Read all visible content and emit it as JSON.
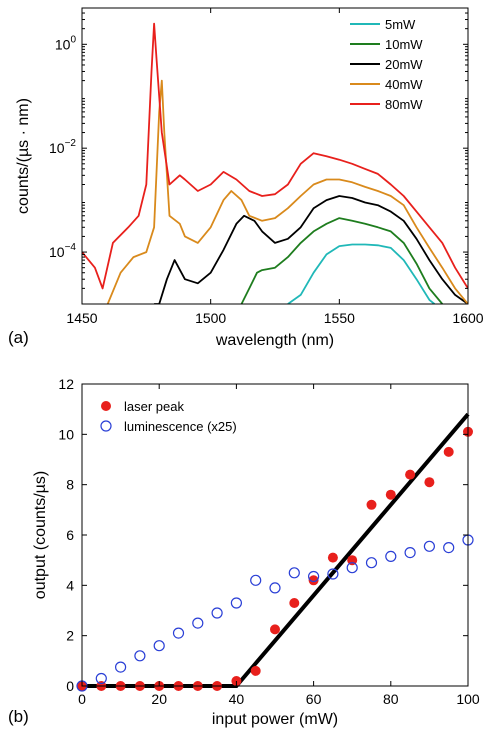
{
  "chart_data": [
    {
      "panel_label": "(a)",
      "type": "line",
      "xlabel": "wavelength (nm)",
      "ylabel": "counts/(µs · nm)",
      "xlim": [
        1450,
        1600
      ],
      "ylim": [
        1e-05,
        5
      ],
      "yscale": "log",
      "xticks": [
        1450,
        1500,
        1550,
        1600
      ],
      "yticks": [
        {
          "value": 1,
          "base": "10",
          "exp": "0"
        },
        {
          "value": 0.01,
          "base": "10",
          "exp": "−2"
        },
        {
          "value": 0.0001,
          "base": "10",
          "exp": "−4"
        }
      ],
      "legend_position": "top-right",
      "series": [
        {
          "name": "5mW",
          "color": "#20b8b8",
          "points": [
            [
              1530,
              1e-05
            ],
            [
              1535,
              1.5e-05
            ],
            [
              1540,
              4e-05
            ],
            [
              1545,
              9e-05
            ],
            [
              1550,
              0.00013
            ],
            [
              1555,
              0.00014
            ],
            [
              1560,
              0.00014
            ],
            [
              1565,
              0.000135
            ],
            [
              1570,
              0.00012
            ],
            [
              1575,
              7e-05
            ],
            [
              1580,
              3e-05
            ],
            [
              1585,
              1.2e-05
            ],
            [
              1587,
              1e-05
            ]
          ]
        },
        {
          "name": "10mW",
          "color": "#1e7d1e",
          "points": [
            [
              1512,
              1e-05
            ],
            [
              1515,
              2e-05
            ],
            [
              1518,
              4e-05
            ],
            [
              1520,
              4.5e-05
            ],
            [
              1525,
              5e-05
            ],
            [
              1530,
              8e-05
            ],
            [
              1535,
              0.00015
            ],
            [
              1540,
              0.00025
            ],
            [
              1545,
              0.00035
            ],
            [
              1550,
              0.00045
            ],
            [
              1555,
              0.0004
            ],
            [
              1560,
              0.00035
            ],
            [
              1565,
              0.0003
            ],
            [
              1570,
              0.00025
            ],
            [
              1575,
              0.00015
            ],
            [
              1580,
              6e-05
            ],
            [
              1585,
              2e-05
            ],
            [
              1590,
              1e-05
            ]
          ]
        },
        {
          "name": "20mW",
          "color": "#000000",
          "points": [
            [
              1478,
              1e-05
            ],
            [
              1480,
              1e-05
            ],
            [
              1483,
              3e-05
            ],
            [
              1486,
              7e-05
            ],
            [
              1490,
              3e-05
            ],
            [
              1495,
              2.5e-05
            ],
            [
              1500,
              4e-05
            ],
            [
              1505,
              0.00011
            ],
            [
              1510,
              0.00035
            ],
            [
              1513,
              0.0005
            ],
            [
              1517,
              0.0004
            ],
            [
              1520,
              0.00025
            ],
            [
              1525,
              0.00015
            ],
            [
              1530,
              0.00018
            ],
            [
              1535,
              0.0003
            ],
            [
              1540,
              0.0007
            ],
            [
              1545,
              0.001
            ],
            [
              1550,
              0.0012
            ],
            [
              1555,
              0.0011
            ],
            [
              1560,
              0.0009
            ],
            [
              1565,
              0.0008
            ],
            [
              1570,
              0.0006
            ],
            [
              1575,
              0.0004
            ],
            [
              1580,
              0.00018
            ],
            [
              1585,
              7e-05
            ],
            [
              1590,
              3e-05
            ],
            [
              1595,
              1.5e-05
            ],
            [
              1600,
              1e-05
            ]
          ]
        },
        {
          "name": "40mW",
          "color": "#d98a1c",
          "points": [
            [
              1460,
              1e-05
            ],
            [
              1465,
              4e-05
            ],
            [
              1470,
              8e-05
            ],
            [
              1475,
              0.0001
            ],
            [
              1478,
              0.0003
            ],
            [
              1480,
              0.05
            ],
            [
              1481,
              0.2
            ],
            [
              1482,
              0.02
            ],
            [
              1484,
              0.0005
            ],
            [
              1488,
              0.00035
            ],
            [
              1490,
              0.0002
            ],
            [
              1495,
              0.00015
            ],
            [
              1500,
              0.0003
            ],
            [
              1505,
              0.001
            ],
            [
              1508,
              0.0015
            ],
            [
              1512,
              0.001
            ],
            [
              1515,
              0.0005
            ],
            [
              1520,
              0.0004
            ],
            [
              1525,
              0.00045
            ],
            [
              1530,
              0.0007
            ],
            [
              1535,
              0.0012
            ],
            [
              1540,
              0.002
            ],
            [
              1545,
              0.0025
            ],
            [
              1550,
              0.0025
            ],
            [
              1555,
              0.0022
            ],
            [
              1560,
              0.0018
            ],
            [
              1565,
              0.0015
            ],
            [
              1570,
              0.0012
            ],
            [
              1575,
              0.0008
            ],
            [
              1580,
              0.0003
            ],
            [
              1585,
              0.00012
            ],
            [
              1590,
              5e-05
            ],
            [
              1595,
              2e-05
            ],
            [
              1600,
              1e-05
            ]
          ]
        },
        {
          "name": "80mW",
          "color": "#e8201c",
          "points": [
            [
              1450,
              0.0001
            ],
            [
              1455,
              5e-05
            ],
            [
              1458,
              2e-05
            ],
            [
              1462,
              0.00015
            ],
            [
              1468,
              0.0003
            ],
            [
              1472,
              0.0005
            ],
            [
              1475,
              0.002
            ],
            [
              1477,
              0.3
            ],
            [
              1478,
              2.5
            ],
            [
              1479,
              0.5
            ],
            [
              1481,
              0.02
            ],
            [
              1484,
              0.002
            ],
            [
              1488,
              0.003
            ],
            [
              1490,
              0.0025
            ],
            [
              1495,
              0.0015
            ],
            [
              1500,
              0.002
            ],
            [
              1505,
              0.0035
            ],
            [
              1510,
              0.0025
            ],
            [
              1515,
              0.0015
            ],
            [
              1520,
              0.0012
            ],
            [
              1525,
              0.0013
            ],
            [
              1530,
              0.002
            ],
            [
              1535,
              0.005
            ],
            [
              1540,
              0.008
            ],
            [
              1545,
              0.007
            ],
            [
              1550,
              0.006
            ],
            [
              1555,
              0.005
            ],
            [
              1560,
              0.004
            ],
            [
              1565,
              0.0032
            ],
            [
              1570,
              0.002
            ],
            [
              1575,
              0.0012
            ],
            [
              1580,
              0.0006
            ],
            [
              1585,
              0.0003
            ],
            [
              1590,
              0.00015
            ],
            [
              1595,
              5e-05
            ],
            [
              1600,
              2e-05
            ]
          ]
        }
      ]
    },
    {
      "panel_label": "(b)",
      "type": "scatter",
      "xlabel": "input power (mW)",
      "ylabel": "output (counts/µs)",
      "xlim": [
        0,
        100
      ],
      "ylim": [
        0,
        12
      ],
      "xticks": [
        0,
        20,
        40,
        60,
        80,
        100
      ],
      "yticks": [
        0,
        2,
        4,
        6,
        8,
        10,
        12
      ],
      "legend_position": "top-left",
      "series": [
        {
          "name": "laser peak",
          "marker": "filled-circle",
          "color": "#e8201c",
          "x": [
            0,
            5,
            10,
            15,
            20,
            25,
            30,
            35,
            40,
            45,
            50,
            55,
            60,
            65,
            70,
            75,
            80,
            85,
            90,
            95,
            100
          ],
          "y": [
            0,
            0,
            0,
            0,
            0,
            0,
            0,
            0,
            0.2,
            0.6,
            2.25,
            3.3,
            4.2,
            5.1,
            5.0,
            7.2,
            7.6,
            8.4,
            8.1,
            9.3,
            10.1
          ]
        },
        {
          "name": "luminescence (x25)",
          "marker": "open-circle",
          "color": "#2a3fd6",
          "x": [
            0,
            5,
            10,
            15,
            20,
            25,
            30,
            35,
            40,
            45,
            50,
            55,
            60,
            65,
            70,
            75,
            80,
            85,
            90,
            95,
            100
          ],
          "y": [
            0,
            0.3,
            0.75,
            1.2,
            1.6,
            2.1,
            2.5,
            2.9,
            3.3,
            4.2,
            3.9,
            4.5,
            4.35,
            4.45,
            4.7,
            4.9,
            5.15,
            5.3,
            5.55,
            5.5,
            5.8
          ]
        },
        {
          "type": "fit-line",
          "color": "#000000",
          "x": [
            0,
            40,
            100
          ],
          "y": [
            0,
            0,
            10.8
          ]
        }
      ]
    }
  ]
}
